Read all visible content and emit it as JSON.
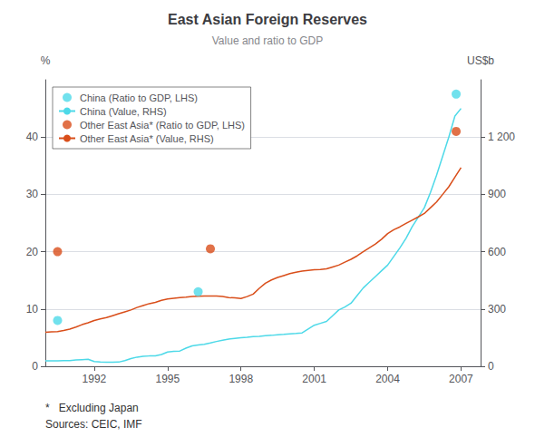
{
  "chart_data": {
    "type": "line",
    "title": "East Asian Foreign Reserves",
    "subtitle": "Value and ratio to GDP",
    "ylabel": "%",
    "y2label": "US$b",
    "annotations": [
      "*   Excluding Japan",
      "Sources: CEIC, IMF"
    ],
    "xlim": [
      1990.0,
      2007.8
    ],
    "xticks": [
      1992,
      1995,
      1998,
      2001,
      2004,
      2007
    ],
    "ylim": [
      0,
      50
    ],
    "yticks": [
      0,
      10,
      20,
      30,
      40
    ],
    "y2lim": [
      0,
      1500
    ],
    "y2ticks": [
      0,
      300,
      600,
      900,
      {
        "value": 1200,
        "label": "1 200"
      }
    ],
    "grid": true,
    "legend": "upper left",
    "series": [
      {
        "name": "China (Ratio to GDP, LHS)",
        "type": "scatter",
        "marker": "circle",
        "color": "#4DD9E8",
        "axis": "y",
        "x": [
          1990.5,
          1996.25,
          2006.8
        ],
        "values": [
          8.0,
          13.0,
          47.5
        ]
      },
      {
        "name": "China (Value, RHS)",
        "type": "line",
        "line_style": "solid",
        "color": "#4DD9E8",
        "axis": "y2",
        "x": [
          1990.0,
          1990.25,
          1990.5,
          1990.75,
          1991.0,
          1991.25,
          1991.5,
          1991.75,
          1992.0,
          1992.25,
          1992.5,
          1992.75,
          1993.0,
          1993.25,
          1993.5,
          1993.75,
          1994.0,
          1994.25,
          1994.5,
          1994.75,
          1995.0,
          1995.25,
          1995.5,
          1995.75,
          1996.0,
          1996.25,
          1996.5,
          1996.75,
          1997.0,
          1997.25,
          1997.5,
          1997.75,
          1998.0,
          1998.25,
          1998.5,
          1998.75,
          1999.0,
          1999.25,
          1999.5,
          1999.75,
          2000.0,
          2000.25,
          2000.5,
          2000.75,
          2001.0,
          2001.25,
          2001.5,
          2001.75,
          2002.0,
          2002.25,
          2002.5,
          2002.75,
          2003.0,
          2003.25,
          2003.5,
          2003.75,
          2004.0,
          2004.25,
          2004.5,
          2004.75,
          2005.0,
          2005.25,
          2005.5,
          2005.75,
          2006.0,
          2006.25,
          2006.5,
          2006.75,
          2007.0
        ],
        "values": [
          28,
          28,
          29,
          30,
          30,
          33,
          35,
          37,
          25,
          22,
          21,
          21,
          22,
          30,
          40,
          48,
          52,
          54,
          55,
          62,
          75,
          78,
          80,
          95,
          107,
          112,
          115,
          122,
          130,
          136,
          142,
          146,
          150,
          152,
          155,
          157,
          160,
          162,
          165,
          167,
          170,
          172,
          175,
          195,
          215,
          225,
          235,
          265,
          295,
          310,
          330,
          370,
          410,
          440,
          470,
          500,
          530,
          575,
          620,
          670,
          730,
          780,
          830,
          910,
          1000,
          1100,
          1200,
          1310,
          1350
        ]
      },
      {
        "name": "Other East Asia* (Ratio to GDP, LHS)",
        "type": "scatter",
        "marker": "circle",
        "color": "#D94E1A",
        "axis": "y",
        "x": [
          1990.5,
          1996.75,
          2006.8
        ],
        "values": [
          20.0,
          20.5,
          41.0
        ]
      },
      {
        "name": "Other East Asia* (Value, RHS)",
        "type": "line",
        "line_style": "solid",
        "color": "#D94E1A",
        "axis": "y2",
        "x": [
          1990.0,
          1990.25,
          1990.5,
          1990.75,
          1991.0,
          1991.25,
          1991.5,
          1991.75,
          1992.0,
          1992.25,
          1992.5,
          1992.75,
          1993.0,
          1993.25,
          1993.5,
          1993.75,
          1994.0,
          1994.25,
          1994.5,
          1994.75,
          1995.0,
          1995.25,
          1995.5,
          1995.75,
          1996.0,
          1996.25,
          1996.5,
          1996.75,
          1997.0,
          1997.25,
          1997.5,
          1997.75,
          1998.0,
          1998.25,
          1998.5,
          1998.75,
          1999.0,
          1999.25,
          1999.5,
          1999.75,
          2000.0,
          2000.25,
          2000.5,
          2000.75,
          2001.0,
          2001.25,
          2001.5,
          2001.75,
          2002.0,
          2002.25,
          2002.5,
          2002.75,
          2003.0,
          2003.25,
          2003.5,
          2003.75,
          2004.0,
          2004.25,
          2004.5,
          2004.75,
          2005.0,
          2005.25,
          2005.5,
          2005.75,
          2006.0,
          2006.25,
          2006.5,
          2006.75,
          2007.0
        ],
        "values": [
          178,
          180,
          182,
          188,
          195,
          205,
          218,
          228,
          240,
          248,
          255,
          265,
          275,
          285,
          295,
          308,
          318,
          328,
          335,
          345,
          352,
          356,
          360,
          362,
          365,
          367,
          368,
          368,
          368,
          365,
          360,
          358,
          355,
          365,
          378,
          408,
          435,
          452,
          465,
          475,
          485,
          492,
          498,
          502,
          505,
          507,
          510,
          520,
          530,
          545,
          560,
          578,
          600,
          620,
          640,
          665,
          695,
          715,
          730,
          748,
          765,
          782,
          800,
          830,
          860,
          900,
          940,
          990,
          1040
        ]
      }
    ]
  }
}
